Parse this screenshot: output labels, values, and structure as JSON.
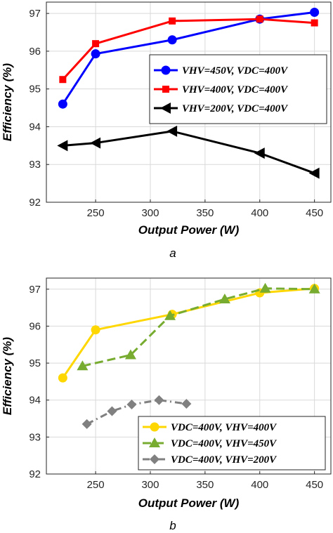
{
  "chart_data": [
    {
      "type": "line",
      "panel_label": "a",
      "xlabel": "Output Power (W)",
      "ylabel": "Efficiency (%)",
      "xlim": [
        205,
        465
      ],
      "ylim": [
        92,
        97.3
      ],
      "xticks": [
        250,
        300,
        350,
        400,
        450
      ],
      "yticks": [
        92,
        93,
        94,
        95,
        96,
        97
      ],
      "grid": true,
      "legend_position": "right",
      "series": [
        {
          "name": "VHV=450V, VDC=400V",
          "color": "#0000ff",
          "marker": "circle",
          "x": [
            220,
            250,
            320,
            400,
            450
          ],
          "y": [
            94.6,
            95.93,
            96.3,
            96.85,
            97.03
          ]
        },
        {
          "name": "VHV=400V, VDC=400V",
          "color": "#ff0000",
          "marker": "square",
          "x": [
            220,
            250,
            320,
            400,
            450
          ],
          "y": [
            95.25,
            96.2,
            96.8,
            96.85,
            96.75
          ]
        },
        {
          "name": "VHV=200V, VDC=400V",
          "color": "#000000",
          "marker": "triangle-left",
          "x": [
            220,
            250,
            320,
            400,
            450
          ],
          "y": [
            93.5,
            93.57,
            93.88,
            93.3,
            92.77
          ]
        }
      ]
    },
    {
      "type": "line",
      "panel_label": "b",
      "xlabel": "Output Power (W)",
      "ylabel": "Efficiency (%)",
      "xlim": [
        205,
        465
      ],
      "ylim": [
        92,
        97.3
      ],
      "xticks": [
        250,
        300,
        350,
        400,
        450
      ],
      "yticks": [
        92,
        93,
        94,
        95,
        96,
        97
      ],
      "grid": true,
      "legend_position": "bottom-right",
      "series": [
        {
          "name": "VDC=400V, VHV=400V",
          "color": "#ffd700",
          "marker": "circle",
          "style": "solid",
          "x": [
            220,
            250,
            320,
            400,
            450
          ],
          "y": [
            94.6,
            95.9,
            96.32,
            96.9,
            97.02
          ]
        },
        {
          "name": "VDC=400V, VHV=450V",
          "color": "#77ac30",
          "marker": "triangle-up",
          "style": "dashed",
          "x": [
            238,
            282,
            318,
            368,
            405,
            450
          ],
          "y": [
            94.92,
            95.22,
            96.28,
            96.73,
            97.02,
            97.0
          ]
        },
        {
          "name": "VDC=400V, VHV=200V",
          "color": "#808080",
          "marker": "diamond",
          "style": "dashdot",
          "x": [
            242,
            265,
            283,
            308,
            333
          ],
          "y": [
            93.35,
            93.7,
            93.88,
            94.0,
            93.9
          ]
        }
      ]
    }
  ]
}
